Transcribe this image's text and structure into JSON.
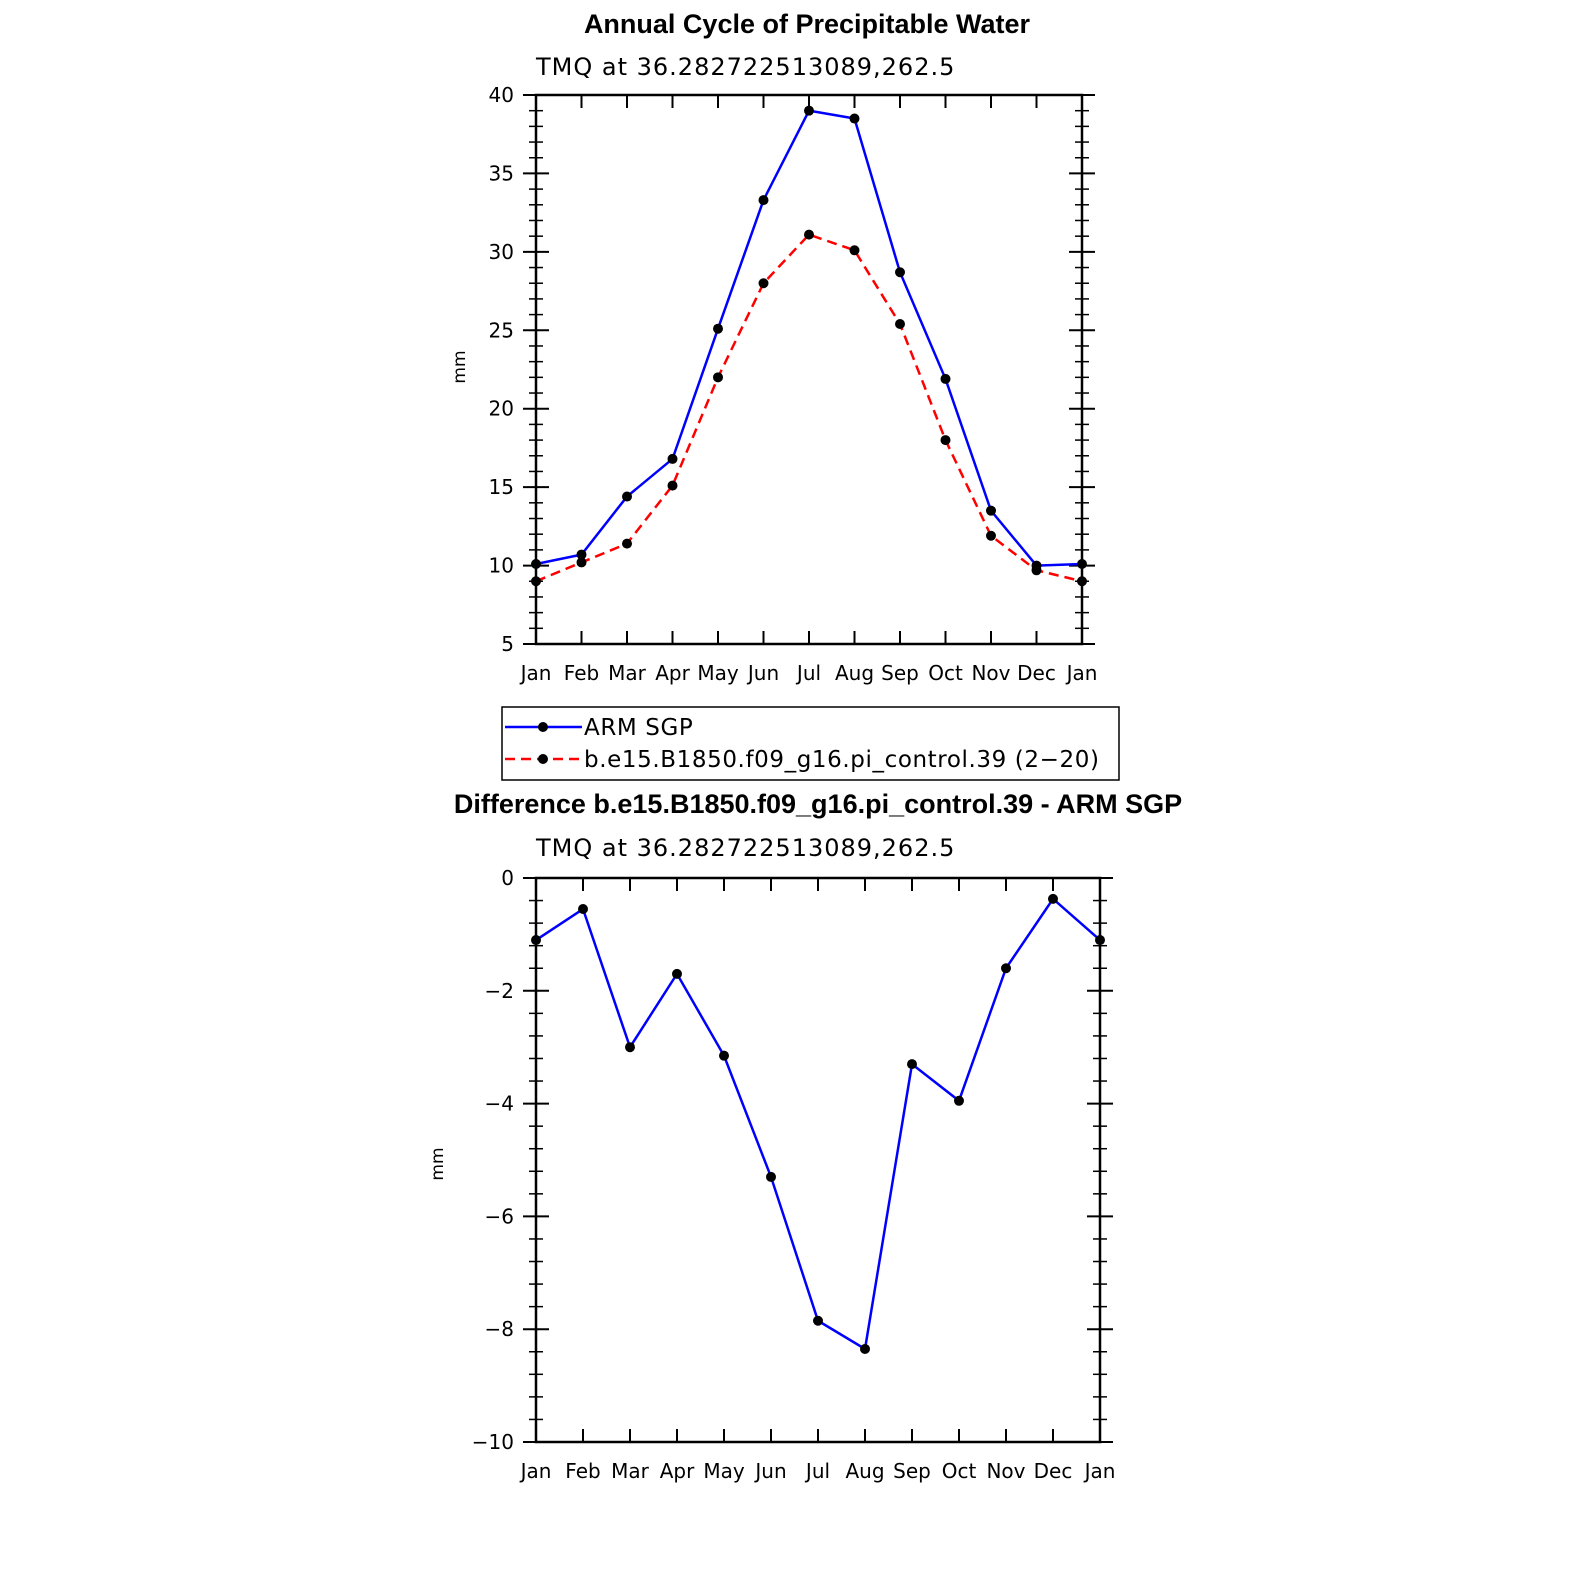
{
  "chart_data": [
    {
      "type": "line",
      "title": "Annual Cycle of Precipitable Water",
      "subtitle": "TMQ at 36.282722513089,262.5",
      "xlabel": "",
      "ylabel": "mm",
      "categories": [
        "Jan",
        "Feb",
        "Mar",
        "Apr",
        "May",
        "Jun",
        "Jul",
        "Aug",
        "Sep",
        "Oct",
        "Nov",
        "Dec",
        "Jan"
      ],
      "ylim": [
        5,
        40
      ],
      "yticks": [
        5,
        10,
        15,
        20,
        25,
        30,
        35,
        40
      ],
      "series": [
        {
          "name": "ARM SGP",
          "color": "#0000ff",
          "style": "solid",
          "marker": "filled-circle",
          "values": [
            10.1,
            10.7,
            14.4,
            16.8,
            25.1,
            33.3,
            39.0,
            38.5,
            28.7,
            21.9,
            13.5,
            10.0,
            10.1
          ]
        },
        {
          "name": "b.e15.B1850.f09_g16.pi_control.39 (2−20)",
          "color": "#ff0000",
          "style": "dashed",
          "marker": "filled-circle",
          "values": [
            9.0,
            10.2,
            11.4,
            15.1,
            22.0,
            28.0,
            31.1,
            30.1,
            25.4,
            18.0,
            11.9,
            9.7,
            9.0
          ]
        }
      ],
      "legend_position": "bottom"
    },
    {
      "type": "line",
      "title": "Difference b.e15.B1850.f09_g16.pi_control.39 - ARM SGP",
      "subtitle": "TMQ at 36.282722513089,262.5",
      "xlabel": "",
      "ylabel": "mm",
      "categories": [
        "Jan",
        "Feb",
        "Mar",
        "Apr",
        "May",
        "Jun",
        "Jul",
        "Aug",
        "Sep",
        "Oct",
        "Nov",
        "Dec",
        "Jan"
      ],
      "ylim": [
        -10,
        0
      ],
      "yticks": [
        -10,
        -8,
        -6,
        -4,
        -2,
        0
      ],
      "ytick_labels": [
        "−10",
        "−8",
        "−6",
        "−4",
        "−2",
        "0"
      ],
      "series": [
        {
          "color": "#0000ff",
          "style": "solid",
          "marker": "filled-circle",
          "values": [
            -1.1,
            -0.55,
            -3.0,
            -1.7,
            -3.15,
            -5.3,
            -7.85,
            -8.35,
            -3.3,
            -3.95,
            -1.6,
            -0.37,
            -1.1
          ]
        }
      ]
    }
  ]
}
